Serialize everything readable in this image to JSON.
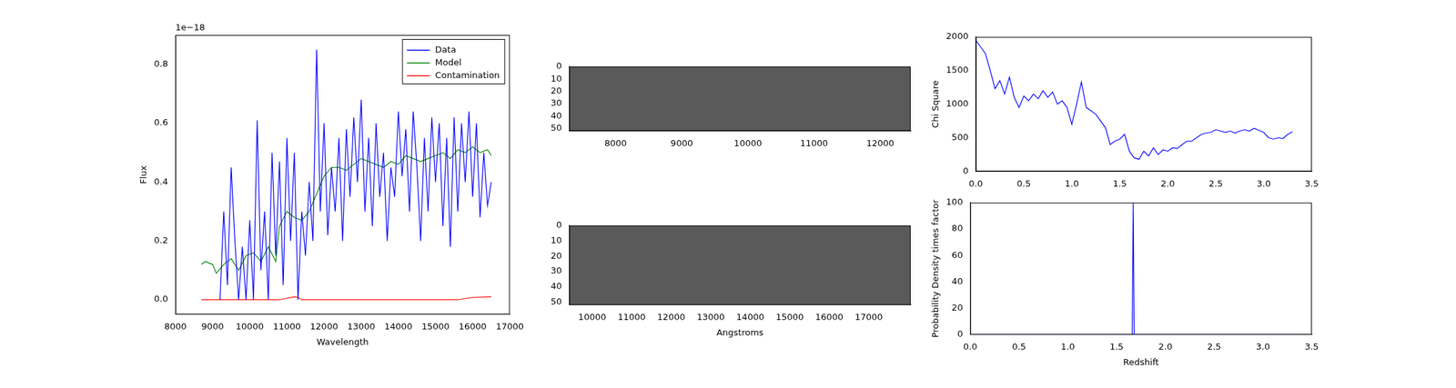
{
  "chart_data": [
    {
      "type": "line",
      "x_label": "Wavelength",
      "y_label": "Flux",
      "y_offset_text": "1e−18",
      "xlim": [
        8000,
        17000
      ],
      "xticks": [
        8000,
        9000,
        10000,
        11000,
        12000,
        13000,
        14000,
        15000,
        16000,
        17000
      ],
      "ylim": [
        -0.05,
        0.9
      ],
      "yticks": [
        {
          "value": 0,
          "label": "0.0"
        },
        0.2,
        0.4,
        0.6,
        0.8
      ],
      "grid": false,
      "legend": "upper right",
      "series": [
        {
          "name": "Data",
          "color": "#0000ff",
          "x": [
            9200,
            9300,
            9400,
            9500,
            9600,
            9700,
            9800,
            9900,
            10000,
            10100,
            10200,
            10300,
            10400,
            10500,
            10600,
            10700,
            10800,
            10900,
            11000,
            11100,
            11200,
            11300,
            11400,
            11500,
            11600,
            11700,
            11800,
            11900,
            12000,
            12100,
            12200,
            12300,
            12400,
            12500,
            12600,
            12700,
            12800,
            12900,
            13000,
            13100,
            13200,
            13300,
            13400,
            13500,
            13600,
            13700,
            13800,
            13900,
            14000,
            14100,
            14200,
            14300,
            14400,
            14500,
            14600,
            14700,
            14800,
            14900,
            15000,
            15100,
            15200,
            15300,
            15400,
            15500,
            15600,
            15700,
            15800,
            15900,
            16000,
            16100,
            16200,
            16300,
            16400,
            16500
          ],
          "values": [
            0.0,
            0.3,
            0.05,
            0.45,
            0.2,
            0.0,
            0.18,
            0.0,
            0.27,
            0.0,
            0.61,
            0.1,
            0.3,
            0.0,
            0.5,
            0.15,
            0.47,
            0.05,
            0.55,
            0.2,
            0.5,
            0.0,
            0.3,
            0.15,
            0.4,
            0.2,
            0.85,
            0.3,
            0.6,
            0.22,
            0.45,
            0.3,
            0.55,
            0.2,
            0.58,
            0.35,
            0.62,
            0.4,
            0.68,
            0.3,
            0.55,
            0.25,
            0.6,
            0.35,
            0.5,
            0.2,
            0.45,
            0.35,
            0.64,
            0.42,
            0.58,
            0.3,
            0.64,
            0.45,
            0.2,
            0.55,
            0.3,
            0.62,
            0.4,
            0.6,
            0.25,
            0.55,
            0.18,
            0.62,
            0.3,
            0.6,
            0.4,
            0.64,
            0.35,
            0.6,
            0.28,
            0.5,
            0.32,
            0.4
          ]
        },
        {
          "name": "Model",
          "color": "#008000",
          "x": [
            8700,
            8800,
            9000,
            9100,
            9300,
            9500,
            9700,
            9900,
            10100,
            10300,
            10500,
            10700,
            10800,
            11000,
            11200,
            11400,
            11600,
            11800,
            12000,
            12200,
            12400,
            12600,
            12800,
            13000,
            13200,
            13400,
            13600,
            13800,
            14000,
            14200,
            14400,
            14600,
            14800,
            15000,
            15200,
            15400,
            15600,
            15800,
            16000,
            16200,
            16400,
            16500
          ],
          "values": [
            0.12,
            0.13,
            0.12,
            0.09,
            0.12,
            0.14,
            0.1,
            0.15,
            0.16,
            0.13,
            0.18,
            0.13,
            0.25,
            0.3,
            0.28,
            0.27,
            0.3,
            0.36,
            0.42,
            0.45,
            0.45,
            0.44,
            0.46,
            0.48,
            0.47,
            0.46,
            0.45,
            0.47,
            0.46,
            0.49,
            0.48,
            0.47,
            0.48,
            0.49,
            0.5,
            0.48,
            0.51,
            0.5,
            0.52,
            0.5,
            0.51,
            0.49
          ]
        },
        {
          "name": "Contamination",
          "color": "#ff0000",
          "x": [
            8700,
            10800,
            11000,
            11200,
            11300,
            11400,
            15600,
            16000,
            16500
          ],
          "values": [
            0,
            0,
            0.005,
            0.01,
            0.008,
            0,
            0,
            0.008,
            0.01
          ]
        }
      ]
    },
    {
      "type": "image",
      "xlim": [
        7300,
        12460
      ],
      "xticks": [
        8000,
        9000,
        10000,
        11000,
        12000
      ],
      "ylim": [
        0,
        52
      ],
      "yticks": [
        0,
        10,
        20,
        30,
        40,
        50
      ]
    },
    {
      "type": "image",
      "x_label": "Angstroms",
      "xlim": [
        9420,
        18060
      ],
      "xticks": [
        10000,
        11000,
        12000,
        13000,
        14000,
        15000,
        16000,
        17000
      ],
      "ylim": [
        0,
        52
      ],
      "yticks": [
        0,
        10,
        20,
        30,
        40,
        50
      ]
    },
    {
      "type": "line",
      "y_label": "Chi Square",
      "xlim": [
        0,
        3.5
      ],
      "xticks": [
        {
          "value": 0,
          "label": "0.0"
        },
        0.5,
        {
          "value": 1,
          "label": "1.0"
        },
        1.5,
        {
          "value": 2,
          "label": "2.0"
        },
        2.5,
        {
          "value": 3,
          "label": "3.0"
        },
        3.5
      ],
      "ylim": [
        0,
        2000
      ],
      "yticks": [
        0,
        500,
        1000,
        1500,
        2000
      ],
      "grid": false,
      "series": [
        {
          "color": "#0000ff",
          "x": [
            0,
            0.05,
            0.1,
            0.15,
            0.2,
            0.25,
            0.3,
            0.35,
            0.4,
            0.45,
            0.5,
            0.55,
            0.6,
            0.65,
            0.7,
            0.75,
            0.8,
            0.85,
            0.9,
            0.95,
            1.0,
            1.05,
            1.1,
            1.15,
            1.2,
            1.25,
            1.3,
            1.35,
            1.4,
            1.45,
            1.5,
            1.55,
            1.6,
            1.65,
            1.7,
            1.75,
            1.8,
            1.85,
            1.9,
            1.95,
            2.0,
            2.05,
            2.1,
            2.15,
            2.2,
            2.25,
            2.3,
            2.35,
            2.4,
            2.45,
            2.5,
            2.55,
            2.6,
            2.65,
            2.7,
            2.75,
            2.8,
            2.85,
            2.9,
            2.95,
            3.0,
            3.05,
            3.1,
            3.15,
            3.2,
            3.25,
            3.3
          ],
          "values": [
            1950,
            1850,
            1750,
            1500,
            1230,
            1350,
            1150,
            1400,
            1100,
            950,
            1120,
            1050,
            1150,
            1080,
            1200,
            1100,
            1180,
            1000,
            1050,
            950,
            700,
            1000,
            1330,
            950,
            900,
            850,
            750,
            650,
            400,
            450,
            480,
            550,
            300,
            200,
            180,
            300,
            230,
            350,
            250,
            320,
            300,
            350,
            340,
            400,
            450,
            450,
            500,
            550,
            570,
            580,
            620,
            600,
            580,
            600,
            570,
            600,
            620,
            600,
            640,
            610,
            580,
            500,
            480,
            500,
            490,
            550,
            590
          ]
        }
      ]
    },
    {
      "type": "line",
      "x_label": "Redshift",
      "y_label": "Probability Density times factor",
      "xlim": [
        0,
        3.5
      ],
      "xticks": [
        {
          "value": 0,
          "label": "0.0"
        },
        0.5,
        {
          "value": 1,
          "label": "1.0"
        },
        1.5,
        {
          "value": 2,
          "label": "2.0"
        },
        2.5,
        {
          "value": 3,
          "label": "3.0"
        },
        3.5
      ],
      "ylim": [
        0,
        100
      ],
      "yticks": [
        0,
        20,
        40,
        60,
        80,
        100
      ],
      "grid": false,
      "series": [
        {
          "color": "#0000ff",
          "x": [
            0,
            1.66,
            1.67,
            1.68,
            3.3
          ],
          "values": [
            0,
            0,
            100,
            0,
            0
          ]
        }
      ]
    }
  ]
}
